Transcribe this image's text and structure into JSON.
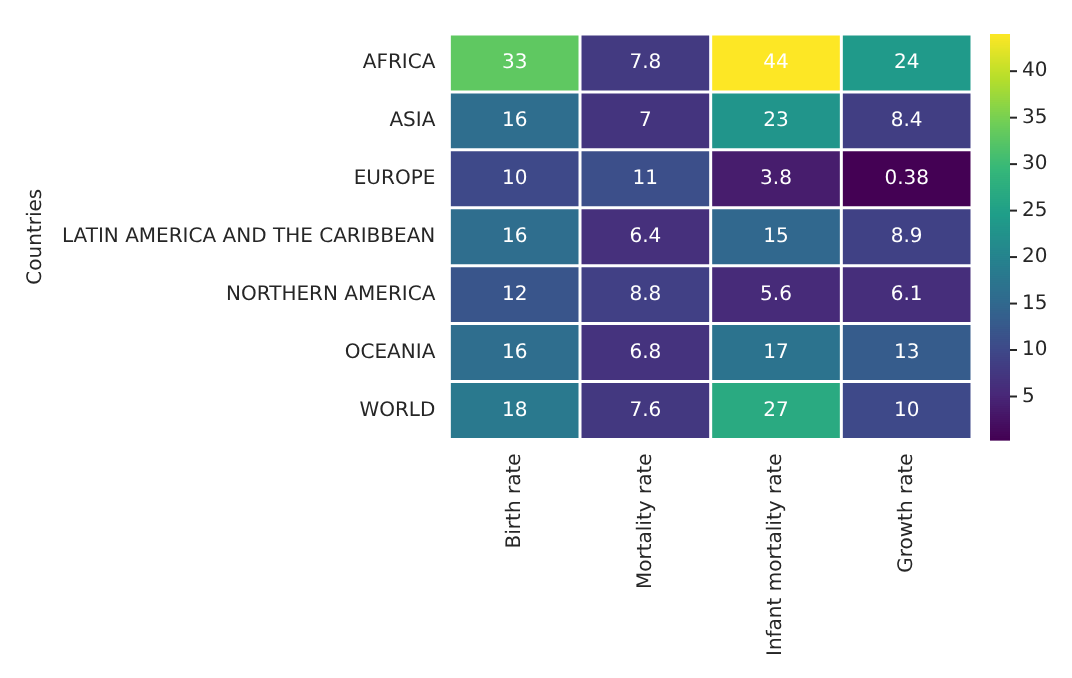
{
  "chart_data": {
    "type": "heatmap",
    "ylabel": "Countries",
    "categories": [
      "Birth rate",
      "Mortality rate",
      "Infant mortality rate",
      "Growth rate"
    ],
    "y_categories": [
      "AFRICA",
      "ASIA",
      "EUROPE",
      "LATIN AMERICA AND THE CARIBBEAN",
      "NORTHERN AMERICA",
      "OCEANIA",
      "WORLD"
    ],
    "cells": [
      [
        33,
        7.8,
        44,
        24
      ],
      [
        16,
        7,
        23,
        8.4
      ],
      [
        10,
        11,
        3.8,
        0.38
      ],
      [
        16,
        6.4,
        15,
        8.9
      ],
      [
        12,
        8.8,
        5.6,
        6.1
      ],
      [
        16,
        6.8,
        17,
        13
      ],
      [
        18,
        7.6,
        27,
        10
      ]
    ],
    "clim": [
      0.38,
      44
    ],
    "cticks": [
      5,
      10,
      15,
      20,
      25,
      30,
      35,
      40
    ],
    "data_labels": true
  }
}
